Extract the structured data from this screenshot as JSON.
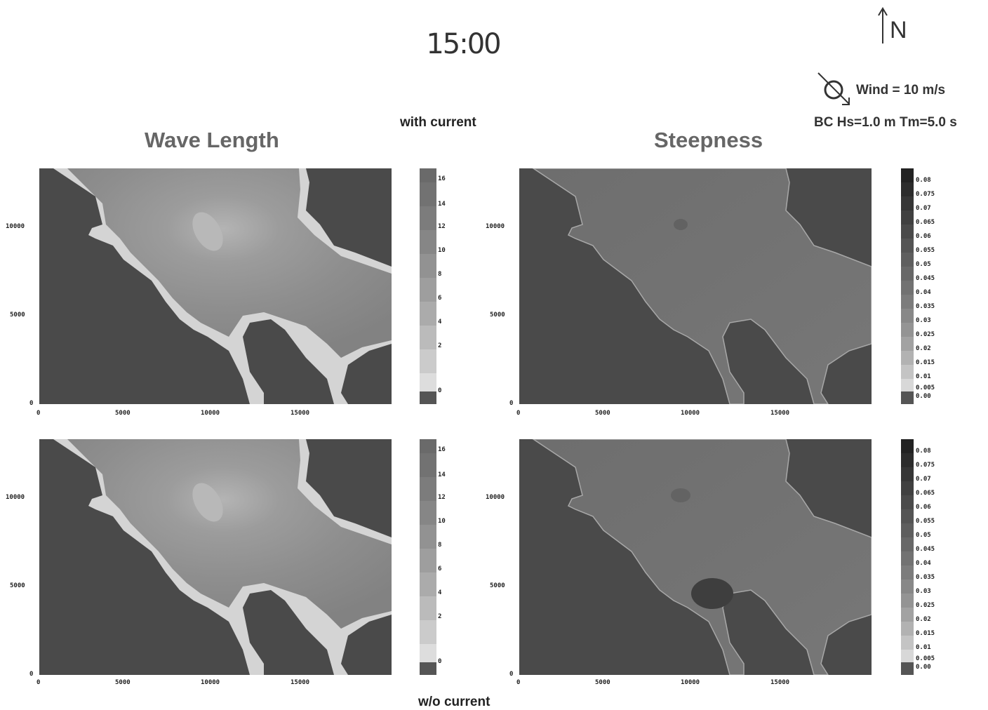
{
  "header": {
    "time": "15:00",
    "north_label": "N",
    "wind_label": "Wind = 10 m/s",
    "bc_label": "BC Hs=1.0 m Tm=5.0 s"
  },
  "experiments": {
    "top": "with current",
    "bottom": "w/o current"
  },
  "panels": {
    "wave_length_title": "Wave Length",
    "steepness_title": "Steepness"
  },
  "axes": {
    "y_ticks": [
      "10000",
      "5000",
      "0"
    ],
    "x_ticks": [
      "0",
      "5000",
      "10000",
      "15000"
    ]
  },
  "colorbars": {
    "wave_length": [
      "16",
      "14",
      "12",
      "10",
      "8",
      "6",
      "4",
      "2",
      "0"
    ],
    "steepness": [
      "0.08",
      "0.075",
      "0.07",
      "0.065",
      "0.06",
      "0.055",
      "0.05",
      "0.045",
      "0.04",
      "0.035",
      "0.03",
      "0.025",
      "0.02",
      "0.015",
      "0.01",
      "0.005",
      "0.00"
    ]
  },
  "colors": {
    "land": "#4a4a4a",
    "water_deep": "#8a8a8a",
    "water_shallow": "#d8d8d8"
  }
}
